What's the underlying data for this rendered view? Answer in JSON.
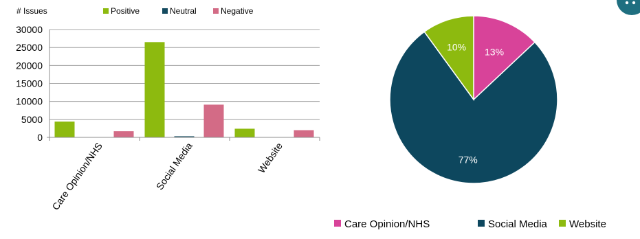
{
  "chart_data": [
    {
      "type": "bar",
      "ylabel": "# Issues",
      "categories": [
        "Care Opinion/NHS",
        "Social Media",
        "Website"
      ],
      "series": [
        {
          "name": "Positive",
          "color": "#8dba0f",
          "values": [
            4400,
            26500,
            2400
          ]
        },
        {
          "name": "Neutral",
          "color": "#144a5f",
          "values": [
            60,
            300,
            60
          ]
        },
        {
          "name": "Negative",
          "color": "#d36b86",
          "values": [
            1700,
            9100,
            2000
          ]
        }
      ],
      "ylim": [
        0,
        30000
      ],
      "yticks": [
        "30000",
        "25000",
        "20000",
        "15000",
        "10000",
        "5000",
        "0"
      ],
      "ytick_values": [
        30000,
        25000,
        20000,
        15000,
        10000,
        5000,
        0
      ],
      "grid": true,
      "legend": "top"
    },
    {
      "type": "pie",
      "slices": [
        {
          "label": "Care Opinion/NHS",
          "value": 13,
          "text": "13%",
          "color": "#d84399"
        },
        {
          "label": "Social Media",
          "value": 77,
          "text": "77%",
          "color": "#0d475e"
        },
        {
          "label": "Website",
          "value": 10,
          "text": "10%",
          "color": "#8dba0f"
        }
      ],
      "legend": "bottom"
    }
  ],
  "corner_badge": {
    "icon": "chat-bubble-icon",
    "color": "#1f6f80"
  }
}
